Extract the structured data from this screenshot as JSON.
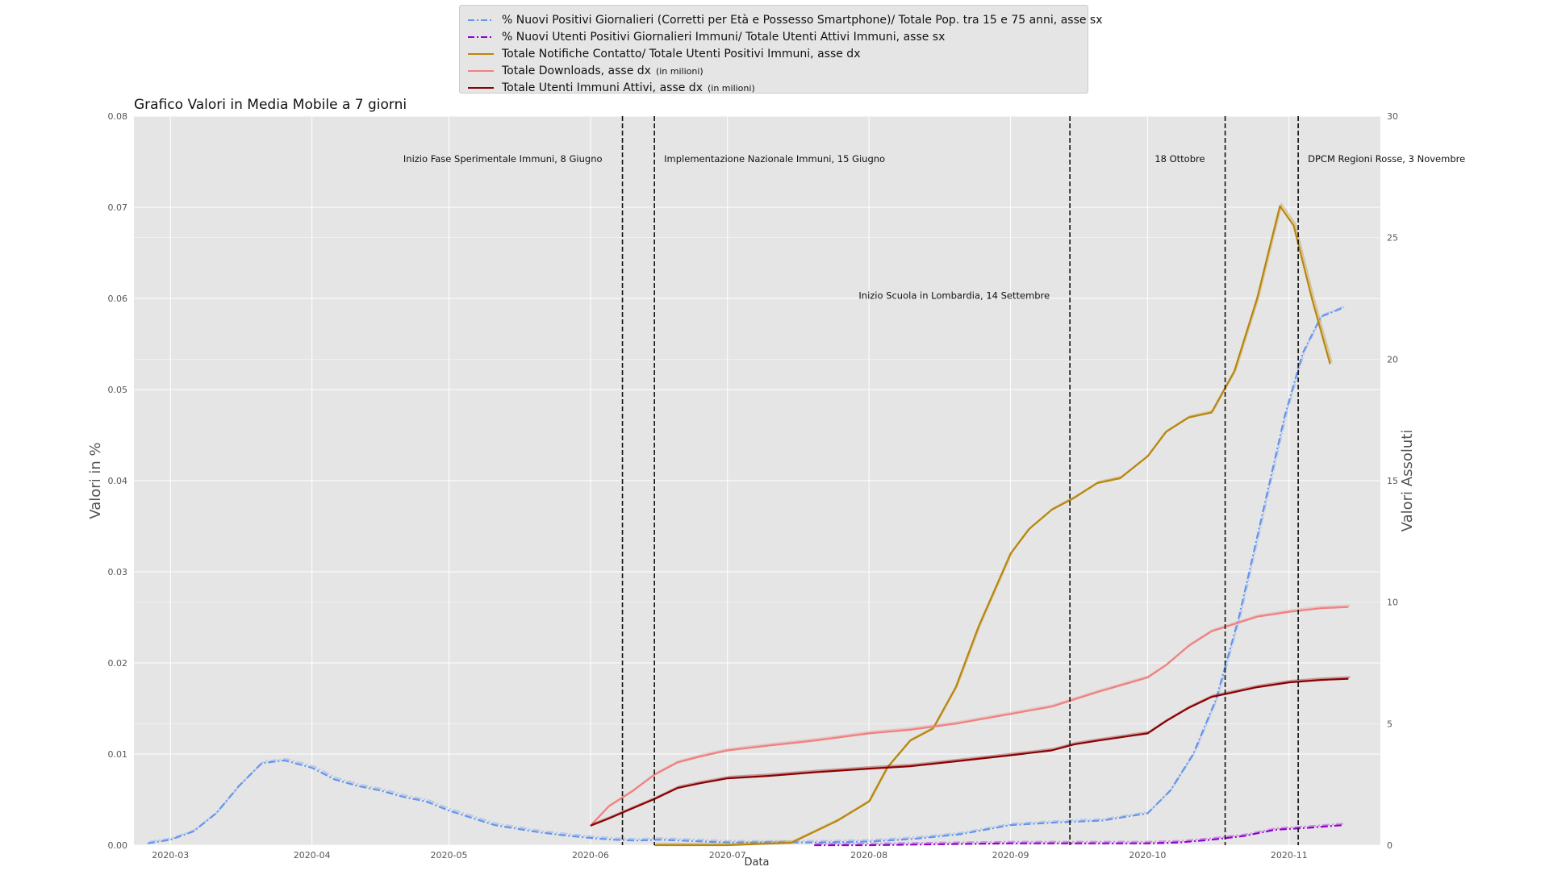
{
  "chart_data": {
    "type": "line",
    "title": "Grafico Valori in Media Mobile a 7 giorni",
    "xlabel": "Data",
    "ylabel_left": "Valori in %",
    "ylabel_right": "Valori Assoluti",
    "x_range": [
      "2020-02-22",
      "2020-11-21"
    ],
    "y_left_range": [
      0,
      0.08
    ],
    "y_right_range": [
      0,
      30
    ],
    "grid": true,
    "legend_position": "top-center",
    "x_ticks": [
      "2020-03",
      "2020-04",
      "2020-05",
      "2020-06",
      "2020-07",
      "2020-08",
      "2020-09",
      "2020-10",
      "2020-11"
    ],
    "x_tick_dates": [
      "2020-03-01",
      "2020-04-01",
      "2020-05-01",
      "2020-06-01",
      "2020-07-01",
      "2020-08-01",
      "2020-09-01",
      "2020-10-01",
      "2020-11-01"
    ],
    "y_left_ticks": [
      "0.00",
      "0.01",
      "0.02",
      "0.03",
      "0.04",
      "0.05",
      "0.06",
      "0.07",
      "0.08"
    ],
    "y_right_ticks": [
      "0",
      "5",
      "10",
      "15",
      "20",
      "25",
      "30"
    ],
    "series": [
      {
        "name": "% Nuovi Positivi Giornalieri (Corretti per Età e Possesso Smartphone)/ Totale Pop. tra 15 e 75 anni, asse sx",
        "axis": "left",
        "color": "#6495ed",
        "style": "dashdot",
        "x": [
          "2020-02-25",
          "2020-03-01",
          "2020-03-06",
          "2020-03-11",
          "2020-03-16",
          "2020-03-21",
          "2020-03-26",
          "2020-04-01",
          "2020-04-06",
          "2020-04-11",
          "2020-04-16",
          "2020-04-21",
          "2020-04-26",
          "2020-05-01",
          "2020-05-06",
          "2020-05-11",
          "2020-05-16",
          "2020-05-21",
          "2020-05-26",
          "2020-06-01",
          "2020-06-06",
          "2020-06-11",
          "2020-06-16",
          "2020-06-21",
          "2020-06-26",
          "2020-07-01",
          "2020-07-11",
          "2020-07-21",
          "2020-08-01",
          "2020-08-11",
          "2020-08-21",
          "2020-09-01",
          "2020-09-11",
          "2020-09-21",
          "2020-10-01",
          "2020-10-06",
          "2020-10-11",
          "2020-10-16",
          "2020-10-21",
          "2020-10-26",
          "2020-10-31",
          "2020-11-04",
          "2020-11-08",
          "2020-11-13"
        ],
        "values": [
          0.0002,
          0.0006,
          0.0015,
          0.0035,
          0.0065,
          0.009,
          0.0093,
          0.0085,
          0.0072,
          0.0065,
          0.006,
          0.0053,
          0.0048,
          0.0038,
          0.003,
          0.0022,
          0.0018,
          0.0014,
          0.0011,
          0.0008,
          0.0006,
          0.0005,
          0.0006,
          0.0005,
          0.0004,
          0.0003,
          0.0003,
          0.0003,
          0.0004,
          0.0007,
          0.0012,
          0.0022,
          0.0025,
          0.0027,
          0.0035,
          0.006,
          0.01,
          0.016,
          0.025,
          0.036,
          0.047,
          0.054,
          0.058,
          0.059
        ]
      },
      {
        "name": "% Nuovi Utenti Positivi Giornalieri Immuni/ Totale Utenti Attivi Immuni, asse sx",
        "axis": "left",
        "color": "#9400d3",
        "style": "dashdot",
        "x": [
          "2020-07-20",
          "2020-08-01",
          "2020-08-15",
          "2020-09-01",
          "2020-09-15",
          "2020-10-01",
          "2020-10-08",
          "2020-10-15",
          "2020-10-22",
          "2020-10-29",
          "2020-11-05",
          "2020-11-10",
          "2020-11-13"
        ],
        "values": [
          0.0,
          0.0,
          0.0001,
          0.0002,
          0.0002,
          0.0002,
          0.0003,
          0.0006,
          0.001,
          0.0017,
          0.0019,
          0.0021,
          0.0022
        ]
      },
      {
        "name": "Totale Notifiche Contatto/ Totale Utenti Positivi Immuni, asse dx",
        "axis": "right",
        "color": "#b8860b",
        "style": "solid",
        "x": [
          "2020-06-15",
          "2020-07-01",
          "2020-07-15",
          "2020-07-25",
          "2020-08-01",
          "2020-08-05",
          "2020-08-10",
          "2020-08-15",
          "2020-08-20",
          "2020-08-25",
          "2020-09-01",
          "2020-09-05",
          "2020-09-10",
          "2020-09-15",
          "2020-09-20",
          "2020-09-25",
          "2020-10-01",
          "2020-10-05",
          "2020-10-10",
          "2020-10-15",
          "2020-10-20",
          "2020-10-25",
          "2020-10-28",
          "2020-10-30",
          "2020-11-02",
          "2020-11-06",
          "2020-11-10"
        ],
        "values": [
          0.0,
          0.0,
          0.1,
          1.0,
          1.8,
          3.2,
          4.3,
          4.8,
          6.5,
          9.0,
          12.0,
          13.0,
          13.8,
          14.3,
          14.9,
          15.1,
          16.0,
          17.0,
          17.6,
          17.8,
          19.5,
          22.5,
          24.8,
          26.3,
          25.5,
          22.5,
          19.8
        ]
      },
      {
        "name": "Totale Downloads, asse dx",
        "unit": "(in milioni)",
        "axis": "right",
        "color": "#f08080",
        "style": "solid",
        "x": [
          "2020-06-01",
          "2020-06-05",
          "2020-06-10",
          "2020-06-15",
          "2020-06-20",
          "2020-06-25",
          "2020-07-01",
          "2020-07-10",
          "2020-07-20",
          "2020-08-01",
          "2020-08-10",
          "2020-08-20",
          "2020-09-01",
          "2020-09-10",
          "2020-09-15",
          "2020-09-20",
          "2020-10-01",
          "2020-10-05",
          "2020-10-10",
          "2020-10-15",
          "2020-10-20",
          "2020-10-25",
          "2020-11-01",
          "2020-11-08",
          "2020-11-14"
        ],
        "values": [
          0.8,
          1.6,
          2.2,
          2.9,
          3.4,
          3.65,
          3.9,
          4.1,
          4.3,
          4.6,
          4.75,
          5.0,
          5.4,
          5.7,
          6.0,
          6.3,
          6.9,
          7.4,
          8.2,
          8.8,
          9.1,
          9.4,
          9.6,
          9.75,
          9.8
        ]
      },
      {
        "name": "Totale Utenti Immuni Attivi, asse dx",
        "unit": "(in milioni)",
        "axis": "right",
        "color": "#8b0000",
        "style": "solid",
        "x": [
          "2020-06-01",
          "2020-06-05",
          "2020-06-10",
          "2020-06-15",
          "2020-06-20",
          "2020-06-25",
          "2020-07-01",
          "2020-07-10",
          "2020-07-20",
          "2020-08-01",
          "2020-08-10",
          "2020-08-20",
          "2020-09-01",
          "2020-09-10",
          "2020-09-15",
          "2020-09-20",
          "2020-10-01",
          "2020-10-05",
          "2020-10-10",
          "2020-10-15",
          "2020-10-20",
          "2020-10-25",
          "2020-11-01",
          "2020-11-08",
          "2020-11-14"
        ],
        "values": [
          0.8,
          1.1,
          1.5,
          1.9,
          2.35,
          2.55,
          2.75,
          2.85,
          3.0,
          3.15,
          3.25,
          3.45,
          3.7,
          3.9,
          4.15,
          4.3,
          4.6,
          5.1,
          5.65,
          6.1,
          6.3,
          6.5,
          6.7,
          6.8,
          6.85
        ]
      }
    ],
    "vlines": [
      {
        "date": "2020-06-08",
        "label": "Inizio Fase Sperimentale Immuni, 8 Giugno",
        "side": "left",
        "level": "upper"
      },
      {
        "date": "2020-06-15",
        "label": "Implementazione Nazionale Immuni, 15 Giugno",
        "side": "right",
        "level": "upper"
      },
      {
        "date": "2020-09-14",
        "label": "Inizio Scuola in Lombardia, 14 Settembre",
        "side": "left",
        "level": "lower"
      },
      {
        "date": "2020-10-18",
        "label": "18 Ottobre",
        "side": "left",
        "level": "upper"
      },
      {
        "date": "2020-11-03",
        "label": "DPCM Regioni Rosse, 3 Novembre",
        "side": "right",
        "level": "upper"
      }
    ]
  }
}
